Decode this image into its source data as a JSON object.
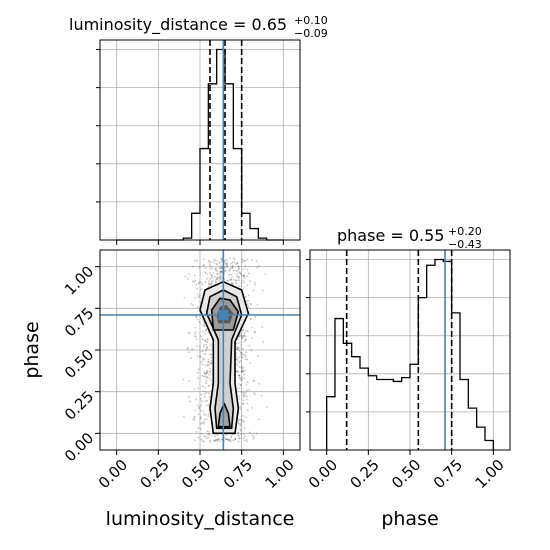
{
  "chart_data": {
    "type": "corner",
    "parameters": [
      "luminosity_distance",
      "phase"
    ],
    "truths": {
      "luminosity_distance": 0.64,
      "phase": 0.71
    },
    "marginals": [
      {
        "param": "luminosity_distance",
        "title_name": "luminosity_distance",
        "title_value": "0.65",
        "title_plus": "+0.10",
        "title_minus": "−0.09",
        "quantiles": [
          0.56,
          0.65,
          0.75
        ],
        "bin_edges": [
          0.0,
          0.05,
          0.1,
          0.15,
          0.2,
          0.25,
          0.3,
          0.35,
          0.4,
          0.45,
          0.5,
          0.55,
          0.6,
          0.65,
          0.7,
          0.75,
          0.8,
          0.85,
          0.9,
          0.95,
          1.0
        ],
        "counts": [
          0,
          0,
          0,
          0,
          0,
          0,
          0,
          0,
          1,
          14,
          48,
          82,
          100,
          82,
          48,
          14,
          6,
          1,
          0,
          0
        ],
        "xlim": [
          -0.1,
          1.1
        ]
      },
      {
        "param": "phase",
        "title_name": "phase",
        "title_value": "0.55",
        "title_plus": "+0.20",
        "title_minus": "−0.43",
        "quantiles": [
          0.12,
          0.55,
          0.75
        ],
        "bin_edges": [
          0.0,
          0.05,
          0.1,
          0.15,
          0.2,
          0.25,
          0.3,
          0.35,
          0.4,
          0.45,
          0.5,
          0.55,
          0.6,
          0.65,
          0.7,
          0.75,
          0.8,
          0.85,
          0.9,
          0.95,
          1.0
        ],
        "counts": [
          28,
          69,
          56,
          49,
          43,
          39,
          37,
          37,
          36,
          38,
          45,
          80,
          97,
          100,
          99,
          72,
          37,
          22,
          12,
          5
        ],
        "xlim": [
          -0.1,
          1.1
        ]
      }
    ],
    "joint": {
      "x": "luminosity_distance",
      "y": "phase",
      "xlim": [
        -0.1,
        1.1
      ],
      "ylim": [
        -0.1,
        1.1
      ]
    },
    "ticks": [
      "0.00",
      "0.25",
      "0.50",
      "0.75",
      "1.00"
    ],
    "tick_values": [
      0,
      0.25,
      0.5,
      0.75,
      1.0
    ],
    "xlabels": [
      "luminosity_distance",
      "phase"
    ],
    "ylabels": [
      "phase"
    ],
    "grid": true,
    "truth_color": "#4682b4"
  }
}
